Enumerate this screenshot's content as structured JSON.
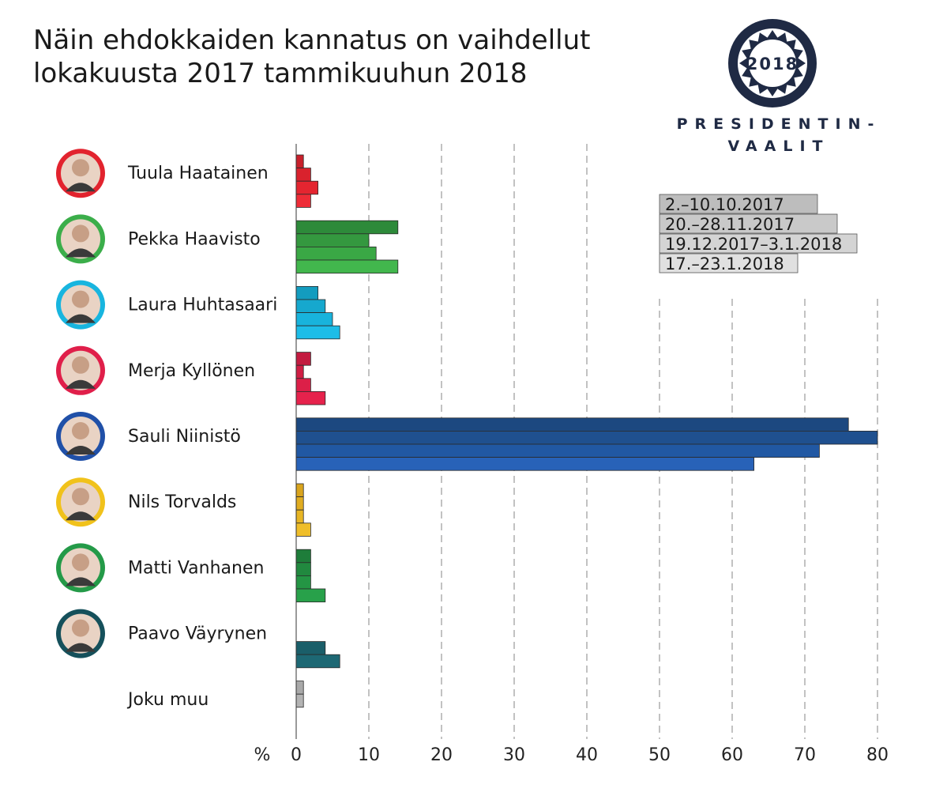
{
  "title_line1": "Näin ehdokkaiden kannatus on vaihdellut",
  "title_line2": "lokakuusta 2017 tammikuuhun 2018",
  "logo": {
    "year": "2018",
    "line1": "PRESIDENTIN-",
    "line2": "VAALIT",
    "color": "#1f2a44"
  },
  "chart_data": {
    "type": "bar",
    "orientation": "horizontal",
    "xlabel": "%",
    "xlim": [
      0,
      80
    ],
    "xticks": [
      0,
      10,
      20,
      30,
      40,
      50,
      60,
      70,
      80
    ],
    "grid": "vertical dashed",
    "legend_placement": "top-right",
    "series": [
      {
        "name": "2.–10.10.2017",
        "legend_color": "#bdbdbd"
      },
      {
        "name": "20.–28.11.2017",
        "legend_color": "#c9c9c9"
      },
      {
        "name": "19.12.2017–3.1.2018",
        "legend_color": "#d4d4d4"
      },
      {
        "name": "17.–23.1.2018",
        "legend_color": "#e0e0e0"
      }
    ],
    "candidates": [
      {
        "name": "Tuula Haatainen",
        "photo_color": "#e2232e",
        "colors": [
          "#c8202b",
          "#d9222d",
          "#e42530",
          "#ee2c37"
        ],
        "values": [
          1,
          2,
          3,
          2
        ]
      },
      {
        "name": "Pekka Haavisto",
        "photo_color": "#3bae4a",
        "colors": [
          "#2d8a3a",
          "#34983f",
          "#3aa845",
          "#42b74d"
        ],
        "values": [
          14,
          10,
          11,
          14
        ]
      },
      {
        "name": "Laura Huhtasaari",
        "photo_color": "#18b5df",
        "colors": [
          "#139cbf",
          "#16a8ce",
          "#18b3dc",
          "#1dbde8"
        ],
        "values": [
          3,
          4,
          5,
          6
        ]
      },
      {
        "name": "Merja Kyllönen",
        "photo_color": "#e01f4a",
        "colors": [
          "#c31b40",
          "#d01d44",
          "#dc1f48",
          "#e6224c"
        ],
        "values": [
          2,
          1,
          2,
          4
        ]
      },
      {
        "name": "Sauli Niinistö",
        "photo_color": "#2050a8",
        "colors": [
          "#1c4880",
          "#1f508f",
          "#2158a3",
          "#2862b8"
        ],
        "values": [
          76,
          80,
          72,
          63
        ]
      },
      {
        "name": "Nils Torvalds",
        "photo_color": "#f1c21b",
        "colors": [
          "#d9a41d",
          "#e0ac20",
          "#e7b524",
          "#efbe2a"
        ],
        "values": [
          1,
          1,
          1,
          2
        ]
      },
      {
        "name": "Matti Vanhanen",
        "photo_color": "#249a48",
        "colors": [
          "#1e7d3a",
          "#21893f",
          "#249544",
          "#28a14a"
        ],
        "values": [
          2,
          2,
          2,
          4
        ]
      },
      {
        "name": "Paavo Väyrynen",
        "photo_color": "#15505b",
        "colors": [
          "#154a54",
          "#18545e",
          "#1a5e69",
          "#1d6874"
        ],
        "values": [
          null,
          null,
          4,
          6
        ]
      },
      {
        "name": "Joku muu",
        "photo_color": null,
        "colors": [
          "#a9a9a9",
          "#b3b3b3",
          "#bdbdbd",
          "#c7c7c7"
        ],
        "values": [
          1,
          1,
          null,
          null
        ]
      }
    ]
  }
}
